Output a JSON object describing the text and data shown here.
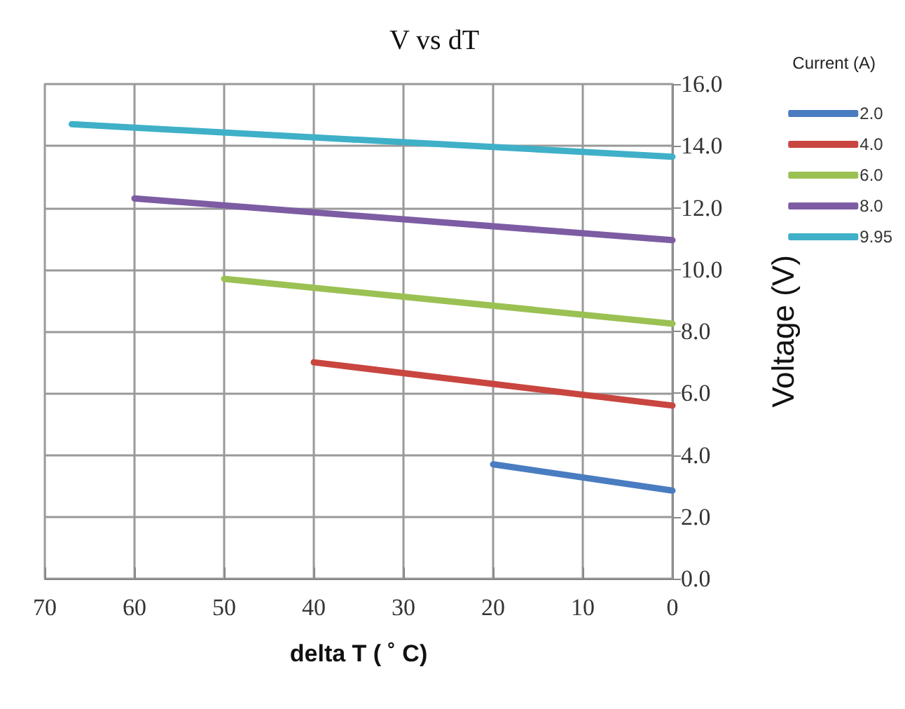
{
  "chart_data": {
    "type": "line",
    "title": "V vs dT",
    "xlabel": "delta T ( ˚ C)",
    "ylabel": "Voltage (V)",
    "legend_title": "Current (A)",
    "xlim": [
      70,
      0
    ],
    "xticks": [
      70,
      60,
      50,
      40,
      30,
      20,
      10,
      0
    ],
    "ylim": [
      0,
      16
    ],
    "yticks": [
      {
        "value": 0,
        "label": "0.0"
      },
      {
        "value": 2,
        "label": "2.0"
      },
      {
        "value": 4,
        "label": "4.0"
      },
      {
        "value": 6,
        "label": "6.0"
      },
      {
        "value": 8,
        "label": "8.0"
      },
      {
        "value": 10,
        "label": "10.0"
      },
      {
        "value": 12,
        "label": "12.0"
      },
      {
        "value": 14,
        "label": "14.0"
      },
      {
        "value": 16,
        "label": "16.0"
      }
    ],
    "grid": true,
    "legend": "top right",
    "marker": "none",
    "line_style": "solid",
    "series": [
      {
        "name": "2.0",
        "color": "#4a7cc1",
        "x": [
          20,
          0
        ],
        "values": [
          3.7,
          2.85
        ]
      },
      {
        "name": "4.0",
        "color": "#c9453f",
        "x": [
          40,
          0
        ],
        "values": [
          7.0,
          5.6
        ]
      },
      {
        "name": "6.0",
        "color": "#9bc153",
        "x": [
          50,
          0
        ],
        "values": [
          9.7,
          8.25
        ]
      },
      {
        "name": "8.0",
        "color": "#7d5ca3",
        "x": [
          60,
          0
        ],
        "values": [
          12.3,
          10.95
        ]
      },
      {
        "name": "9.95",
        "color": "#3fb0c8",
        "x": [
          67,
          0
        ],
        "values": [
          14.7,
          13.65
        ]
      }
    ]
  }
}
